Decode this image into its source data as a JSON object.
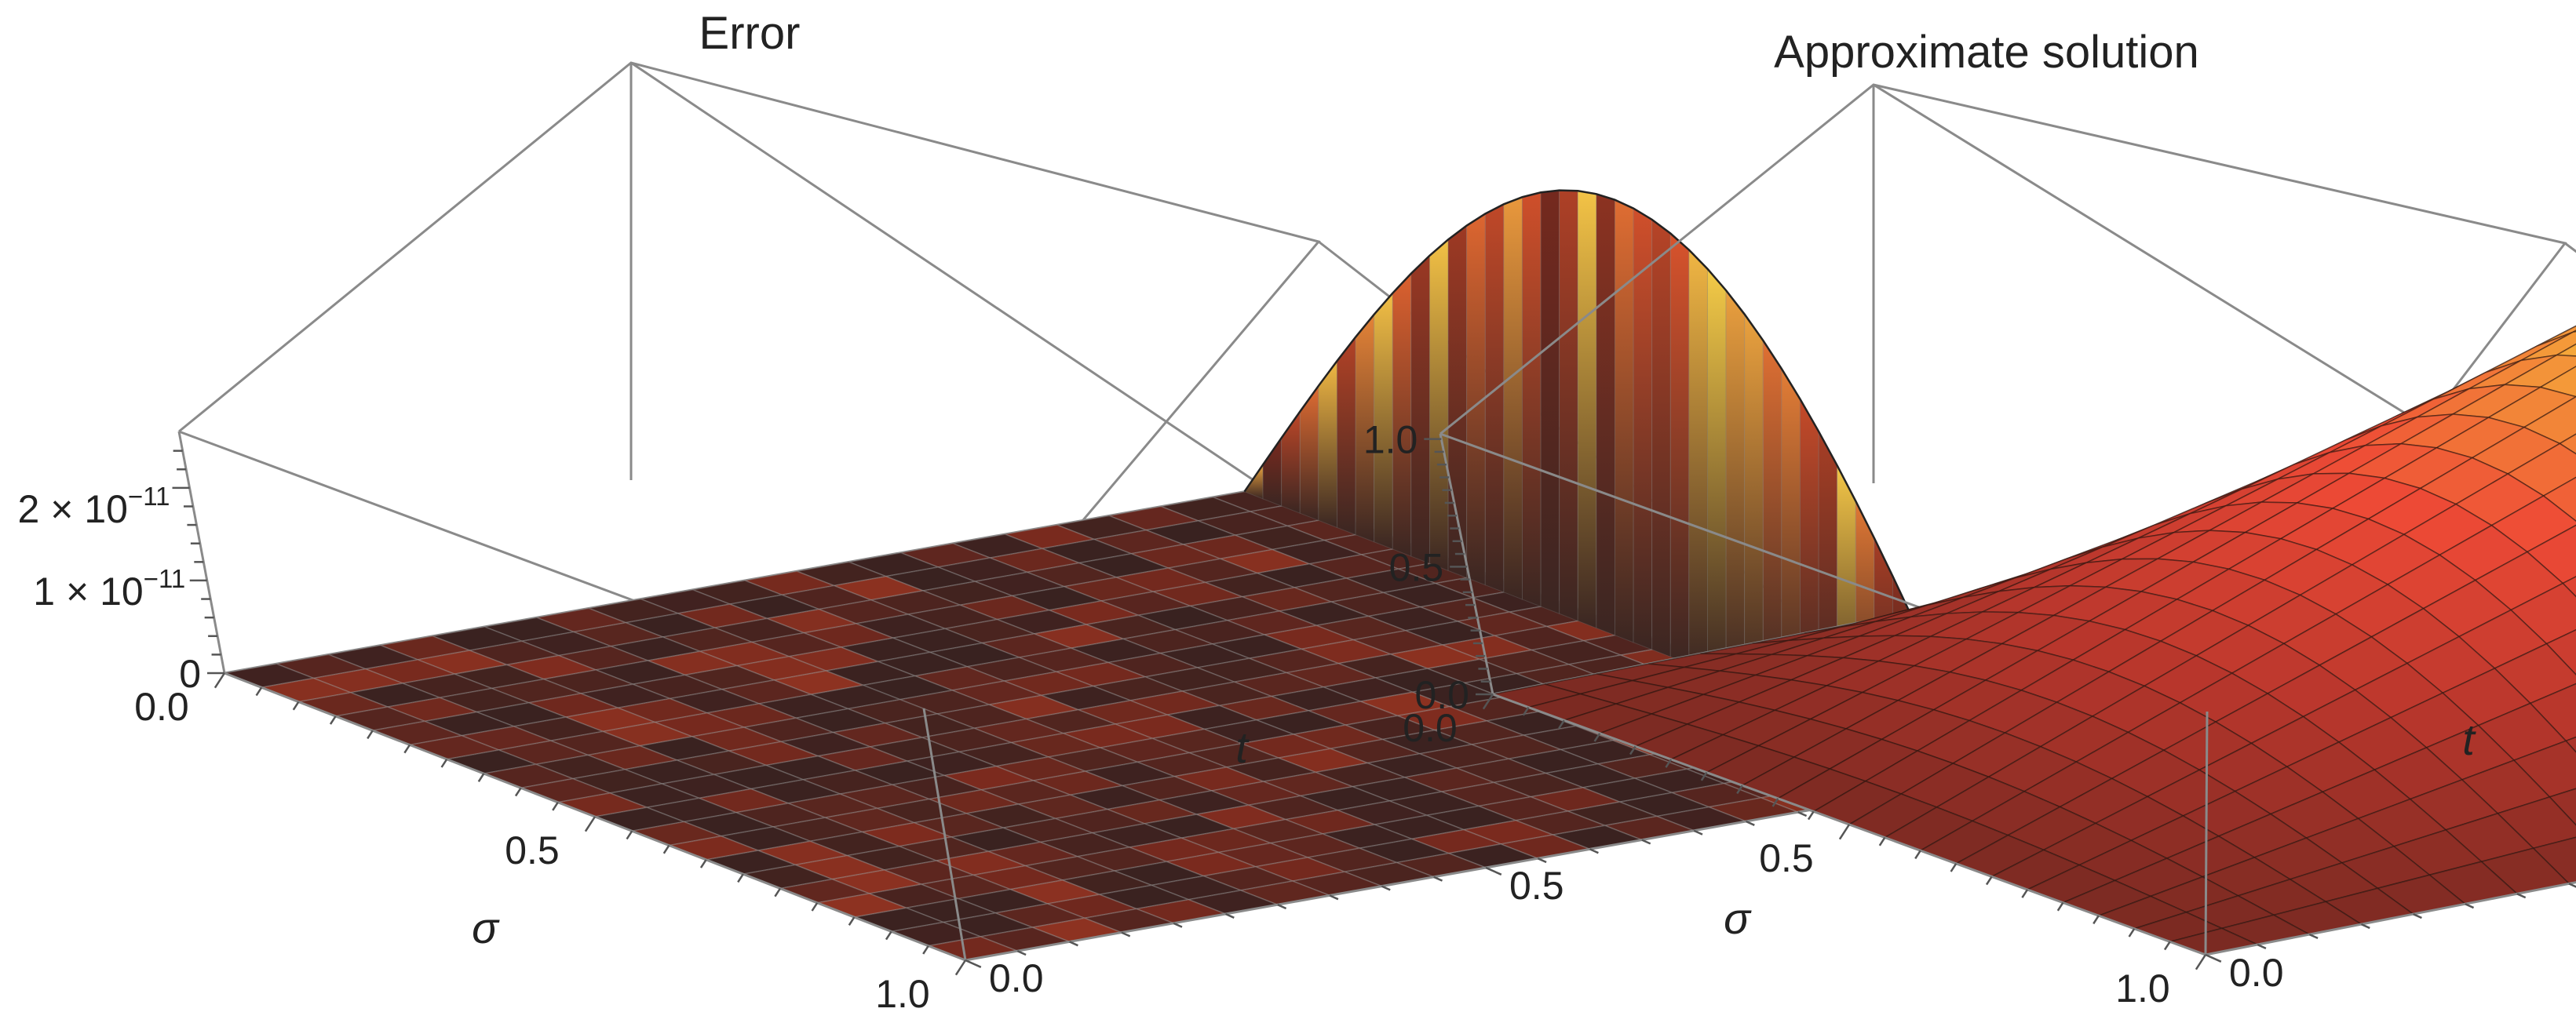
{
  "chart_data": [
    {
      "type": "surface",
      "title": "Error",
      "x_label": "σ",
      "y_label": "t",
      "x_range": [
        0.0,
        1.0
      ],
      "y_range": [
        0.0,
        1.0
      ],
      "z_range": [
        0,
        2.7e-11
      ],
      "x_ticks": [
        "0.0",
        "0.5",
        "1.0"
      ],
      "y_ticks": [
        "0.0",
        "0.5",
        "1.0"
      ],
      "z_ticks": [
        {
          "value": 0,
          "label": "0"
        },
        {
          "value": 1e-11,
          "mantissa": "1 × 10",
          "exponent": "−11"
        },
        {
          "value": 2e-11,
          "mantissa": "2 × 10",
          "exponent": "−11"
        }
      ],
      "surface_description": "error magnitude near zero over most of the domain; largest values along the t = 1 boundary where it traces sin(πσ) profile peaking near 2.5e-11",
      "colormap": [
        "#2e2020",
        "#7a2a1e",
        "#d9532c",
        "#f7d64a"
      ],
      "grid_lines": 20
    },
    {
      "type": "surface",
      "title": "Approximate  solution",
      "x_label": "σ",
      "y_label": "t",
      "x_range": [
        0.0,
        1.0
      ],
      "y_range": [
        0.0,
        1.0
      ],
      "z_range": [
        0.0,
        1.0
      ],
      "x_ticks": [
        "0.0",
        "0.5",
        "1.0"
      ],
      "y_ticks": [
        "0.0",
        "0.5",
        "1.0"
      ],
      "z_ticks": [
        {
          "value": 0.0,
          "label": "0.0"
        },
        {
          "value": 0.5,
          "label": "0.5"
        },
        {
          "value": 1.0,
          "label": "1.0"
        }
      ],
      "surface_description": "u(σ,t) ≈ t·sin(πσ); zero at t = 0, peaks at 1.0 at σ = 0.5, t = 1",
      "colormap": [
        "#7a2a22",
        "#b7362c",
        "#ee4a36",
        "#f6b43a",
        "#f7e070"
      ],
      "grid_lines": 20
    }
  ]
}
